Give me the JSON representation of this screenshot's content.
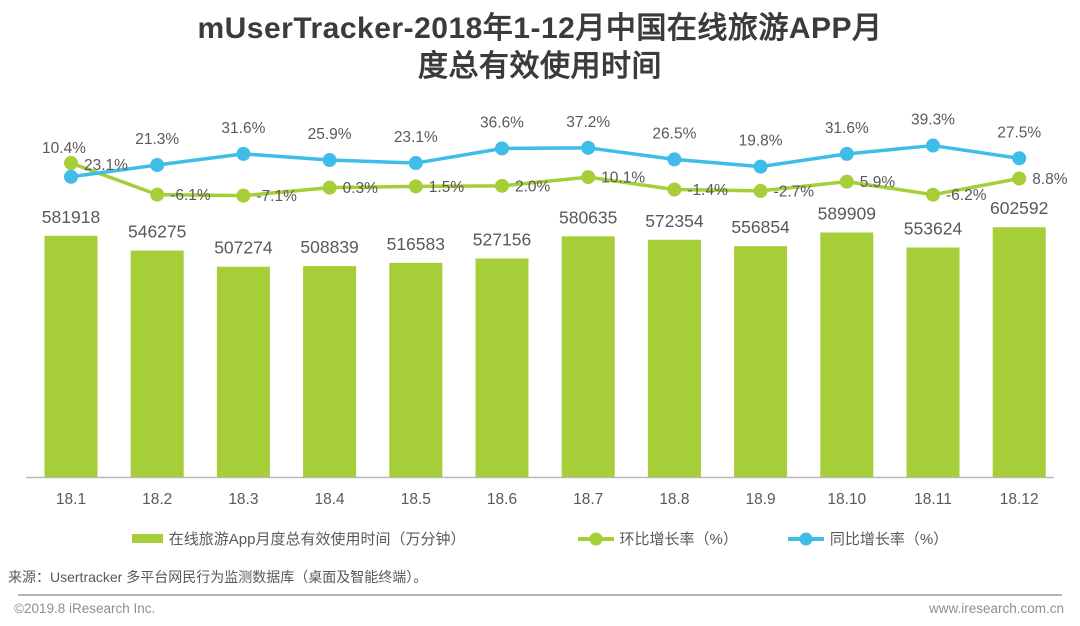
{
  "title": {
    "full": "mUserTracker-2018年1-12月中国在线旅游APP月度总有效使用时间",
    "line1": "mUserTracker-2018年1-12月中国在线旅游APP月",
    "line2": "度总有效使用时间"
  },
  "chart_data": {
    "type": "combo (bar + 2 lines)",
    "categories": [
      "18.1",
      "18.2",
      "18.3",
      "18.4",
      "18.5",
      "18.6",
      "18.7",
      "18.8",
      "18.9",
      "18.10",
      "18.11",
      "18.12"
    ],
    "series": [
      {
        "name": "在线旅游App月度总有效使用时间（万分钟）",
        "type": "bar",
        "color": "#a6ce39",
        "values": [
          581918,
          546275,
          507274,
          508839,
          516583,
          527156,
          580635,
          572354,
          556854,
          589909,
          553624,
          602592
        ]
      },
      {
        "name": "环比增长率（%）",
        "type": "line",
        "color": "#a6ce39",
        "values": [
          10.4,
          -6.1,
          -7.1,
          0.3,
          1.5,
          2.0,
          10.1,
          -1.4,
          -2.7,
          5.9,
          -6.2,
          8.8
        ]
      },
      {
        "name": "同比增长率（%）",
        "type": "line",
        "color": "#3fbde8",
        "values": [
          23.1,
          21.3,
          31.6,
          25.9,
          23.1,
          36.6,
          37.2,
          26.5,
          19.8,
          31.6,
          39.3,
          27.5
        ]
      }
    ],
    "label_color": "#595959",
    "axis_line_color": "#b9b9b9",
    "grid": false,
    "legend_position": "bottom",
    "value_labels_shown": true
  },
  "source": "来源：Usertracker 多平台网民行为监测数据库（桌面及智能终端）。",
  "footer": {
    "left": "©2019.8 iResearch Inc.",
    "right": "www.iresearch.com.cn"
  }
}
